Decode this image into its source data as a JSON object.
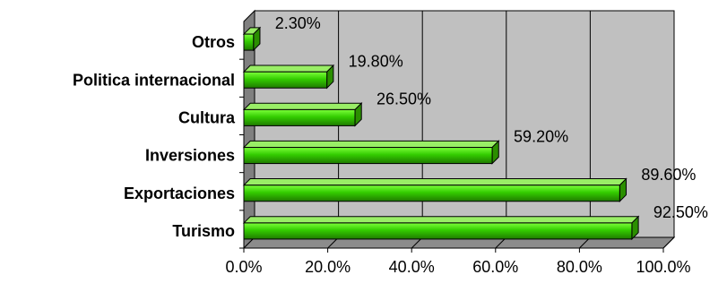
{
  "chart_data": {
    "type": "bar",
    "orientation": "horizontal",
    "three_d": true,
    "categories": [
      "Turismo",
      "Exportaciones",
      "Inversiones",
      "Cultura",
      "Politica internacional",
      "Otros"
    ],
    "values": [
      92.5,
      89.6,
      59.2,
      26.5,
      19.8,
      2.3
    ],
    "value_labels": [
      "92.50%",
      "89.60%",
      "59.20%",
      "26.50%",
      "19.80%",
      "2.30%"
    ],
    "x_ticks": [
      "0.0%",
      "20.0%",
      "40.0%",
      "60.0%",
      "80.0%",
      "100.0%"
    ],
    "xlim": [
      0,
      100
    ],
    "title": "",
    "xlabel": "",
    "ylabel": "",
    "grid": "vertical",
    "legend": "none",
    "colors": {
      "bar_light": "#7cff3a",
      "bar_mid": "#33cc00",
      "bar_dark": "#1f7a00",
      "bar_top": "#99ee66",
      "bar_side": "#2b8f00",
      "plot_wall": "#c0c0c0",
      "plot_side_wall": "#808080",
      "plot_floor": "#8c8c8c",
      "gridline": "#000000"
    }
  }
}
